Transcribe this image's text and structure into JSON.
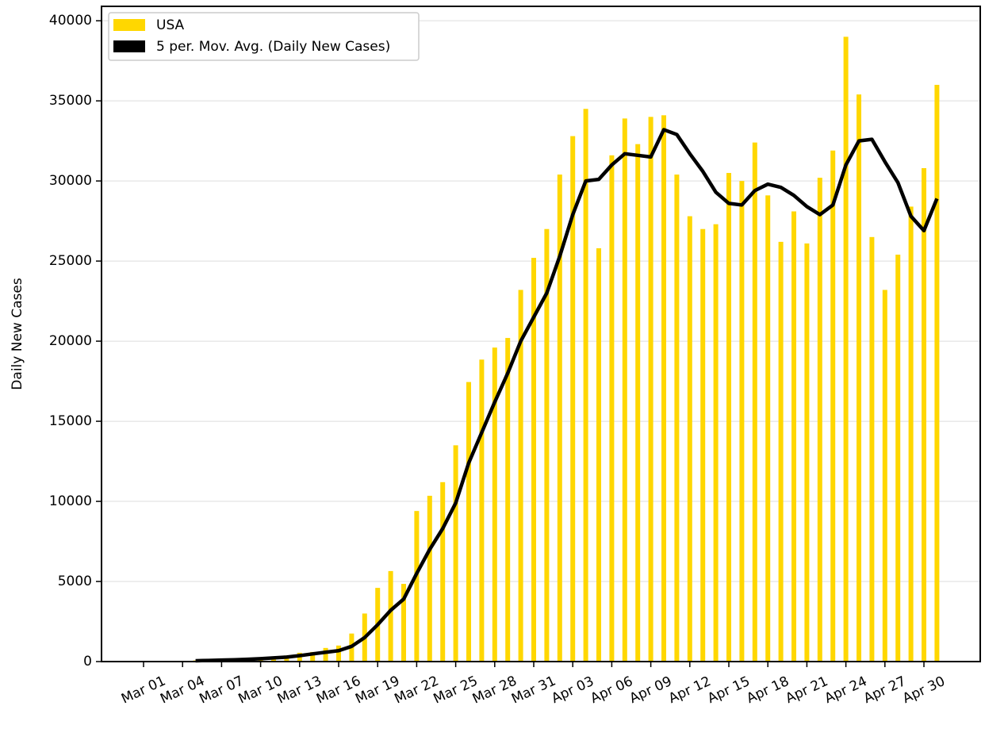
{
  "chart_data": {
    "type": "bar",
    "ylabel": "Daily New Cases",
    "categories": [
      "Mar 01",
      null,
      null,
      "Mar 04",
      null,
      null,
      "Mar 07",
      null,
      null,
      "Mar 10",
      null,
      null,
      "Mar 13",
      null,
      null,
      "Mar 16",
      null,
      null,
      "Mar 19",
      null,
      null,
      "Mar 22",
      null,
      null,
      "Mar 25",
      null,
      null,
      "Mar 28",
      null,
      null,
      "Mar 31",
      null,
      null,
      "Apr 03",
      null,
      null,
      "Apr 06",
      null,
      null,
      "Apr 09",
      null,
      null,
      "Apr 12",
      null,
      null,
      "Apr 15",
      null,
      null,
      "Apr 18",
      null,
      null,
      "Apr 21",
      null,
      null,
      "Apr 24",
      null,
      null,
      "Apr 27",
      null,
      null,
      "Apr 30",
      null
    ],
    "series": [
      {
        "name": "USA",
        "type": "bar",
        "color": "#ffd700",
        "values": [
          10,
          20,
          30,
          50,
          70,
          60,
          120,
          110,
          180,
          260,
          300,
          380,
          550,
          600,
          850,
          1000,
          1750,
          3000,
          4600,
          5650,
          4850,
          9400,
          10350,
          11200,
          13500,
          17450,
          18850,
          19600,
          20200,
          23200,
          25200,
          27000,
          30400,
          32800,
          34500,
          25800,
          31600,
          33900,
          32300,
          34000,
          34100,
          30400,
          27800,
          27000,
          27300,
          30500,
          30000,
          32400,
          29100,
          26200,
          28100,
          26100,
          30200,
          31900,
          39000,
          35400,
          26500,
          23200,
          25400,
          28400,
          30800,
          36000
        ]
      },
      {
        "name": "5 per. Mov. Avg. (Daily New Cases)",
        "type": "line",
        "color": "#000000",
        "values": [
          null,
          null,
          null,
          null,
          50,
          70,
          90,
          110,
          140,
          180,
          230,
          280,
          370,
          480,
          580,
          680,
          950,
          1500,
          2300,
          3200,
          3900,
          5500,
          7000,
          8300,
          9900,
          12400,
          14300,
          16200,
          18000,
          20000,
          21500,
          23000,
          25300,
          27900,
          30000,
          30100,
          31000,
          31700,
          31600,
          31500,
          33200,
          32900,
          31700,
          30600,
          29300,
          28600,
          28500,
          29400,
          29800,
          29600,
          29100,
          28400,
          27900,
          28500,
          31000,
          32500,
          32600,
          31200,
          29900,
          27800,
          26900,
          28900
        ]
      }
    ],
    "ylim": [
      0,
      40900
    ],
    "yticks": [
      0,
      5000,
      10000,
      15000,
      20000,
      25000,
      30000,
      35000,
      40000
    ],
    "grid": true,
    "legend": "upper left"
  }
}
